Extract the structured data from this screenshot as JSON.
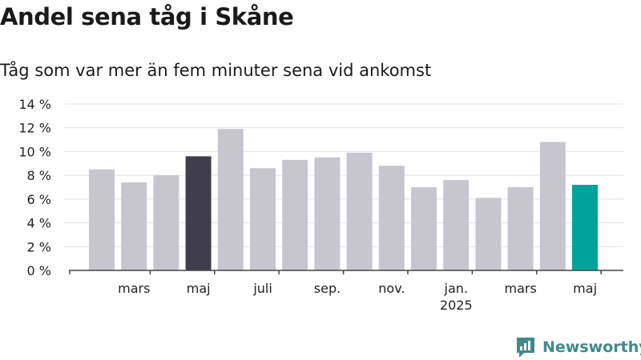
{
  "title": "Andel sena tåg i Skåne",
  "subtitle": "Tåg som var mer än fem minuter sena vid ankomst",
  "brand": {
    "label": "Newsworthy",
    "color": "#3f8a8c"
  },
  "chart_data": {
    "type": "bar",
    "values": [
      8.5,
      7.4,
      8.0,
      9.6,
      11.9,
      8.6,
      9.3,
      9.5,
      9.9,
      8.8,
      7.0,
      7.6,
      6.1,
      7.0,
      10.8,
      7.2
    ],
    "bar_colors": [
      "#c7c6cf",
      "#c7c6cf",
      "#c7c6cf",
      "#403e4c",
      "#c7c6cf",
      "#c7c6cf",
      "#c7c6cf",
      "#c7c6cf",
      "#c7c6cf",
      "#c7c6cf",
      "#c7c6cf",
      "#c7c6cf",
      "#c7c6cf",
      "#c7c6cf",
      "#c7c6cf",
      "#00a39a"
    ],
    "x_tick_labels": [
      {
        "at_bar": 1.5,
        "label": "mars",
        "sub": ""
      },
      {
        "at_bar": 3.5,
        "label": "maj",
        "sub": ""
      },
      {
        "at_bar": 5.5,
        "label": "juli",
        "sub": ""
      },
      {
        "at_bar": 7.5,
        "label": "sep.",
        "sub": ""
      },
      {
        "at_bar": 9.5,
        "label": "nov.",
        "sub": ""
      },
      {
        "at_bar": 11.5,
        "label": "jan.",
        "sub": "2025"
      },
      {
        "at_bar": 13.5,
        "label": "mars",
        "sub": ""
      },
      {
        "at_bar": 15.5,
        "label": "maj",
        "sub": ""
      }
    ],
    "y_ticks": [
      0,
      2,
      4,
      6,
      8,
      10,
      12,
      14
    ],
    "y_tick_labels": [
      "0 %",
      "2 %",
      "4 %",
      "6 %",
      "8 %",
      "10 %",
      "12 %",
      "14 %"
    ],
    "ylim": [
      0,
      14
    ],
    "grid": true,
    "xlabel": "",
    "ylabel": ""
  }
}
